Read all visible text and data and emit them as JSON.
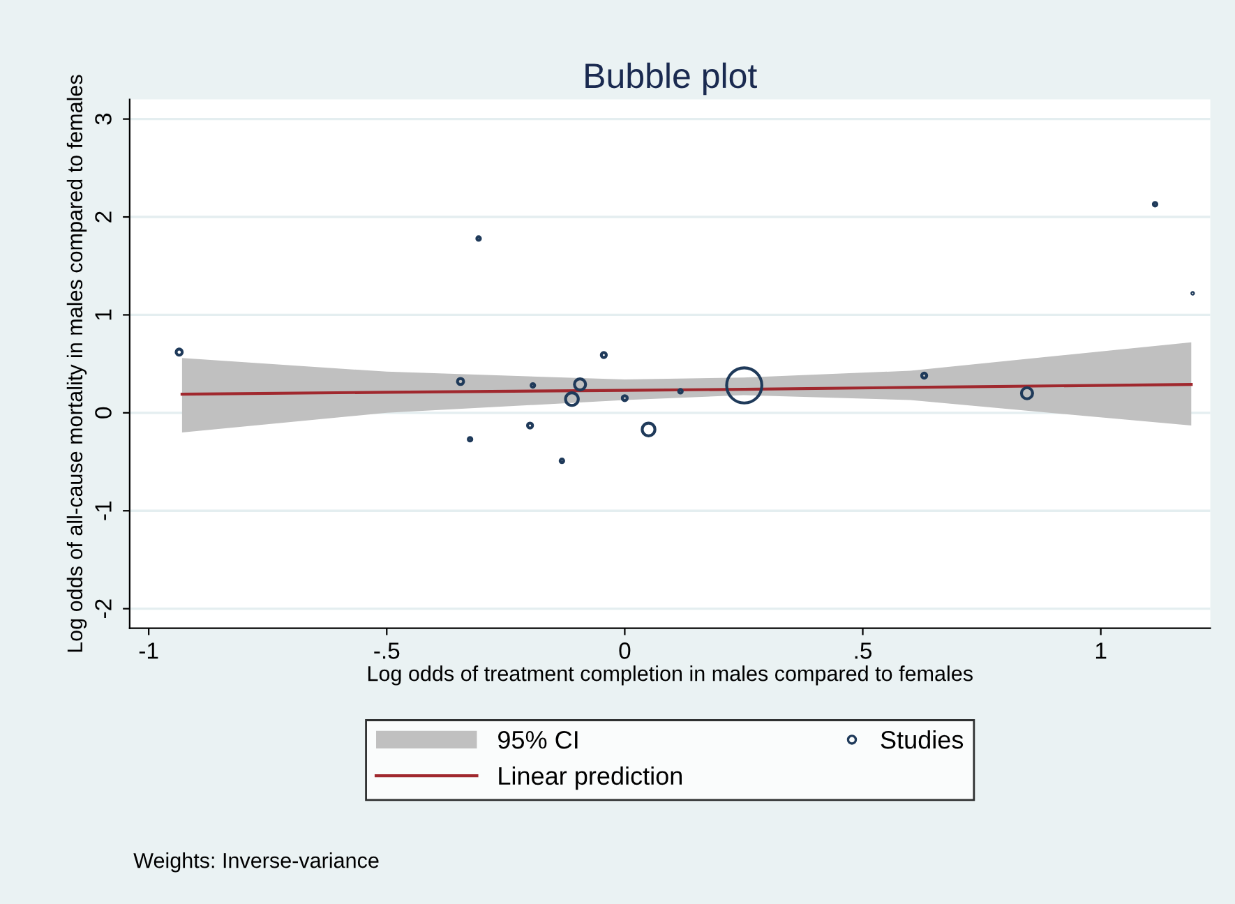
{
  "chart_data": {
    "type": "bubble",
    "title": "Bubble plot",
    "xlabel": "Log odds of treatment completion in males compared to females",
    "ylabel": "Log odds of all-cause mortality in males compared to females",
    "xlim": [
      -1.04,
      1.23
    ],
    "xticks": [
      -1,
      {
        "value": -0.5,
        "label": "-.5"
      },
      0,
      {
        "value": 0.5,
        "label": ".5"
      },
      1
    ],
    "ylim": [
      -2.2,
      3.2
    ],
    "yticks": [
      -2,
      -1,
      0,
      1,
      2,
      3
    ],
    "grid": "y",
    "legend": "bottom",
    "series": [
      {
        "name": "Linear prediction",
        "type": "line",
        "color": "#a0282e",
        "x": [
          -0.93,
          -0.5,
          0,
          0.25,
          0.6,
          1.19
        ],
        "values": [
          0.19,
          0.21,
          0.23,
          0.24,
          0.26,
          0.29
        ],
        "lower": [
          -0.2,
          0.0,
          0.13,
          0.18,
          0.13,
          -0.13
        ],
        "upper": [
          0.56,
          0.42,
          0.34,
          0.36,
          0.43,
          0.72
        ]
      },
      {
        "name": "Studies",
        "color": "#1f3a5a",
        "x": [
          -0.936,
          -0.345,
          -0.307,
          -0.325,
          -0.193,
          -0.199,
          -0.132,
          -0.111,
          -0.094,
          -0.044,
          0.0,
          0.05,
          0.117,
          0.251,
          0.629,
          0.845,
          1.114,
          1.193
        ],
        "values": [
          0.62,
          0.32,
          1.78,
          -0.27,
          0.28,
          -0.13,
          -0.49,
          0.14,
          0.29,
          0.59,
          0.15,
          -0.17,
          0.22,
          0.28,
          0.38,
          0.2,
          2.13,
          1.22
        ],
        "sizes": [
          0.03,
          0.03,
          0.01,
          0.01,
          0.01,
          0.02,
          0.01,
          0.13,
          0.1,
          0.02,
          0.02,
          0.13,
          0.01,
          1,
          0.02,
          0.1,
          0.01,
          0.002
        ]
      }
    ],
    "annotations": [
      "95% CI",
      "Weights: Inverse-variance"
    ]
  }
}
